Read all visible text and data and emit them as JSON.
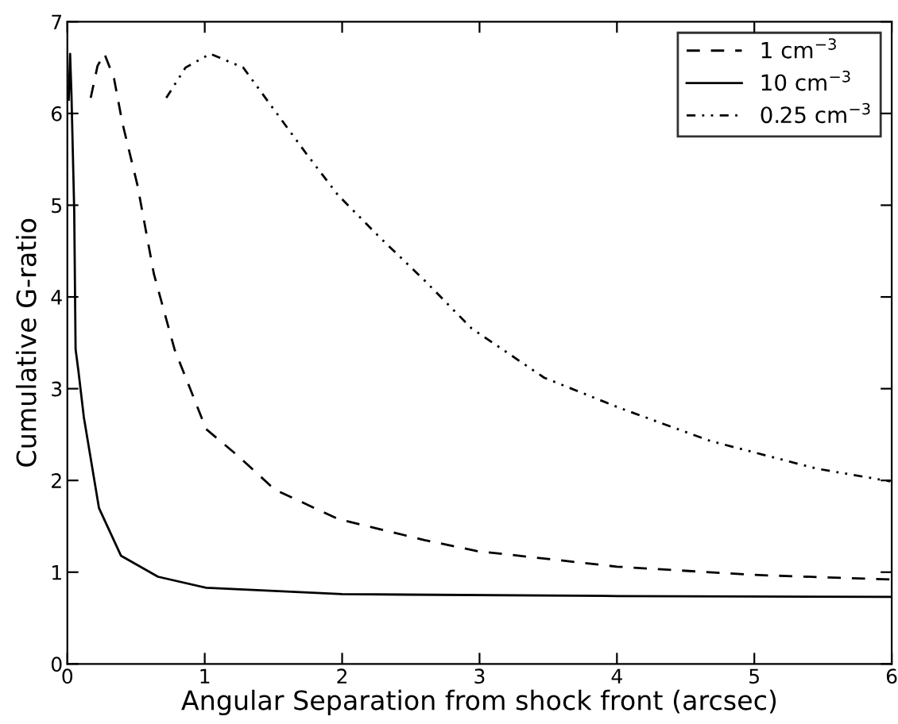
{
  "chart_data": {
    "type": "line",
    "xlabel": "Angular Separation from shock front (arcsec)",
    "ylabel": "Cumulative G-ratio",
    "xlim": [
      0,
      6
    ],
    "ylim": [
      0,
      7
    ],
    "xticks": [
      0,
      1,
      2,
      3,
      4,
      5,
      6
    ],
    "yticks": [
      0,
      1,
      2,
      3,
      4,
      5,
      6,
      7
    ],
    "grid": false,
    "legend": "top right",
    "series": [
      {
        "name": "1 cm$^{−3}$",
        "color": "#000000",
        "line_style": "dashed",
        "x": [
          0.17,
          0.22,
          0.27,
          0.34,
          0.4,
          0.51,
          0.63,
          0.78,
          1.01,
          1.24,
          1.51,
          1.97,
          2.6,
          2.98,
          4.0,
          5.0,
          6.0
        ],
        "values": [
          6.17,
          6.52,
          6.65,
          6.38,
          5.9,
          5.22,
          4.25,
          3.43,
          2.56,
          2.27,
          1.9,
          1.58,
          1.35,
          1.23,
          1.06,
          0.97,
          0.92
        ]
      },
      {
        "name": "10 cm$^{−3}$",
        "color": "#000000",
        "line_style": "solid",
        "x": [
          0.01,
          0.02,
          0.03,
          0.05,
          0.06,
          0.08,
          0.12,
          0.23,
          0.39,
          0.66,
          1.01,
          2.0,
          4.0,
          6.0
        ],
        "values": [
          6.15,
          6.65,
          6.2,
          4.94,
          3.43,
          3.2,
          2.69,
          1.7,
          1.18,
          0.95,
          0.83,
          0.76,
          0.74,
          0.73
        ]
      },
      {
        "name": "0.25 cm$^{−3}$",
        "color": "#000000",
        "line_style": "dashdotdot",
        "x": [
          0.72,
          0.86,
          1.04,
          1.28,
          1.51,
          1.74,
          1.97,
          2.28,
          2.6,
          2.94,
          3.47,
          4.02,
          4.68,
          5.45,
          5.99
        ],
        "values": [
          6.17,
          6.5,
          6.65,
          6.5,
          6.03,
          5.56,
          5.11,
          4.64,
          4.18,
          3.66,
          3.12,
          2.79,
          2.43,
          2.13,
          1.99
        ]
      }
    ]
  }
}
